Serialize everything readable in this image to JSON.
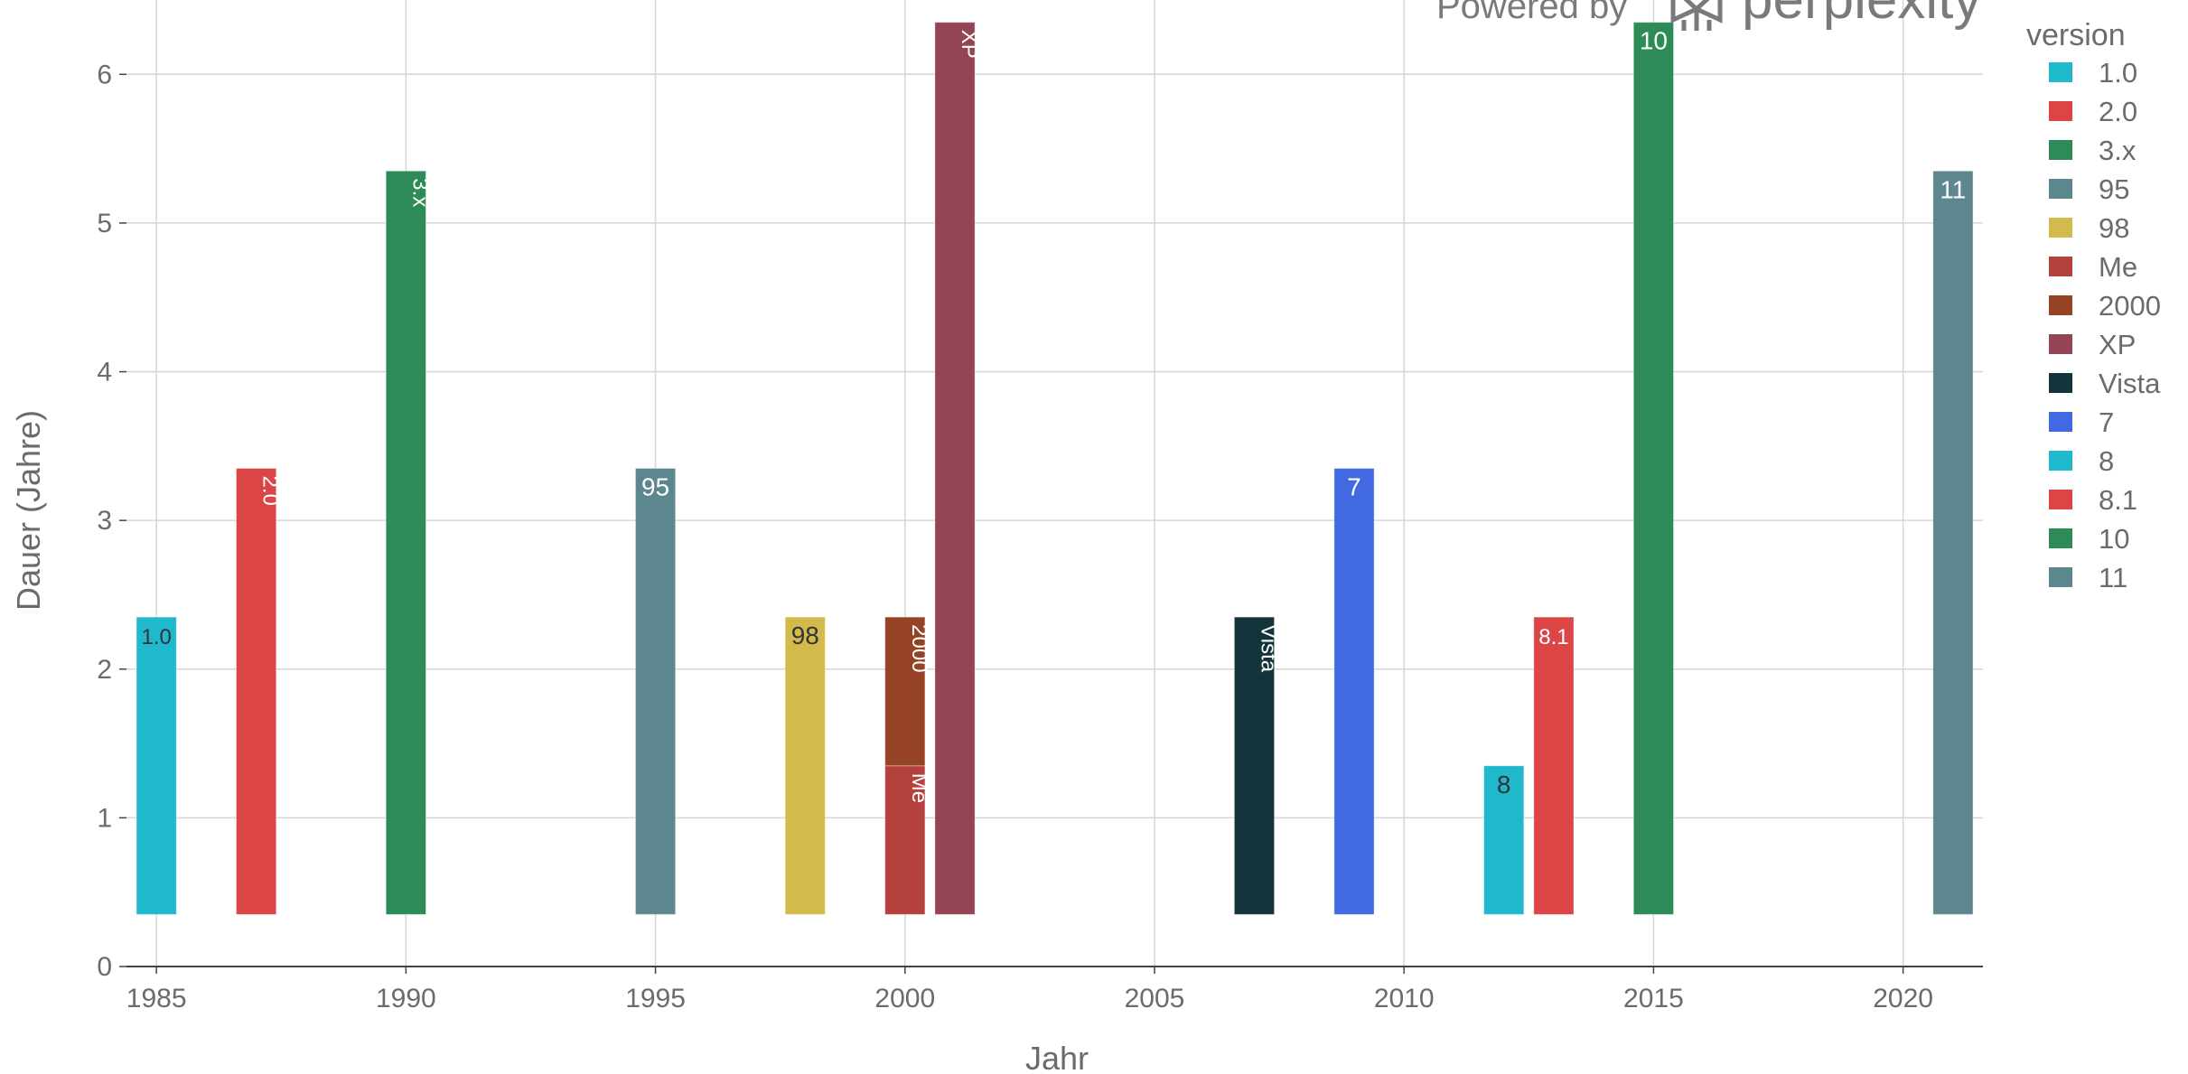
{
  "watermark": {
    "prefix": "Powered by",
    "brand": "perplexity",
    "logo_icon": "perplexity-logo-icon"
  },
  "chart_data": {
    "type": "bar",
    "xlabel": "Jahr",
    "ylabel": "Dauer (Jahre)",
    "xlim": [
      1984.4,
      2021.6
    ],
    "ylim": [
      0,
      6.5
    ],
    "x_ticks": [
      1985,
      1990,
      1995,
      2000,
      2005,
      2010,
      2015,
      2020
    ],
    "y_ticks": [
      0,
      1,
      2,
      3,
      4,
      5,
      6
    ],
    "grid": true,
    "legend": {
      "title": "version",
      "placement": "right"
    },
    "bar_width": 0.8,
    "base": 0.35,
    "series": [
      {
        "name": "1.0",
        "x": 1985,
        "value": 2.0,
        "color": "#1FB8CD",
        "label_color": "#333333"
      },
      {
        "name": "2.0",
        "x": 1987,
        "value": 3.0,
        "color": "#DB4545",
        "label_color": "#ffffff"
      },
      {
        "name": "3.x",
        "x": 1990,
        "value": 5.0,
        "color": "#2E8B57",
        "label_color": "#ffffff"
      },
      {
        "name": "95",
        "x": 1995,
        "value": 3.0,
        "color": "#5D878F",
        "label_color": "#ffffff"
      },
      {
        "name": "98",
        "x": 1998,
        "value": 2.0,
        "color": "#D2BA4C",
        "label_color": "#333333"
      },
      {
        "name": "Me",
        "x": 2000,
        "value": 1.0,
        "color": "#B4413C",
        "label_color": "#ffffff"
      },
      {
        "name": "2000",
        "x": 2000,
        "value": 1.0,
        "color": "#964325",
        "label_color": "#ffffff"
      },
      {
        "name": "XP",
        "x": 2001,
        "value": 6.0,
        "color": "#944454",
        "label_color": "#ffffff"
      },
      {
        "name": "Vista",
        "x": 2007,
        "value": 2.0,
        "color": "#13343B",
        "label_color": "#ffffff"
      },
      {
        "name": "7",
        "x": 2009,
        "value": 3.0,
        "color": "#4169E1",
        "label_color": "#ffffff"
      },
      {
        "name": "8",
        "x": 2012,
        "value": 1.0,
        "color": "#1FB8CD",
        "label_color": "#333333"
      },
      {
        "name": "8.1",
        "x": 2013,
        "value": 2.0,
        "color": "#DB4545",
        "label_color": "#ffffff"
      },
      {
        "name": "10",
        "x": 2015,
        "value": 6.0,
        "color": "#2E8B57",
        "label_color": "#ffffff"
      },
      {
        "name": "11",
        "x": 2021,
        "value": 5.0,
        "color": "#5D878F",
        "label_color": "#ffffff"
      }
    ]
  }
}
